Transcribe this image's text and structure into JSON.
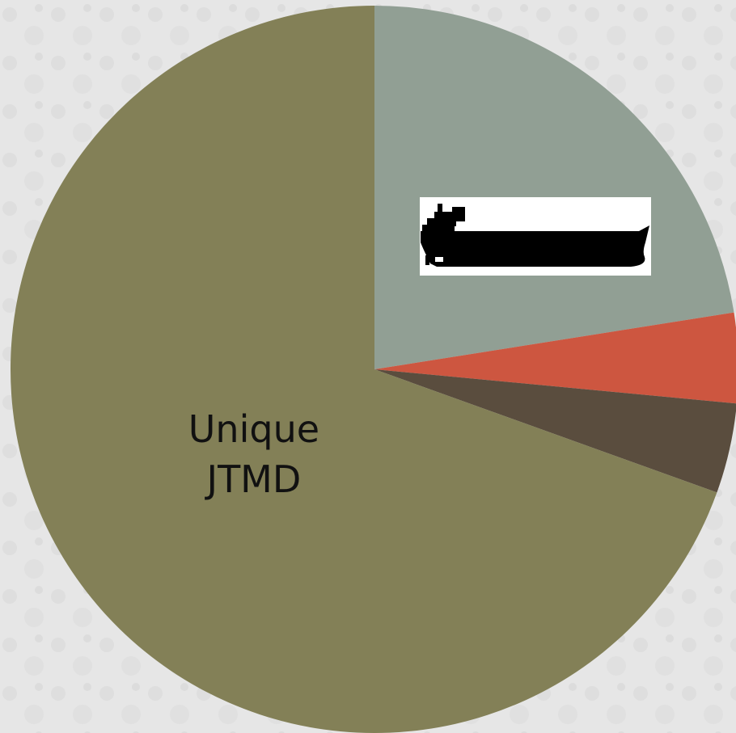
{
  "chart_data": {
    "type": "pie",
    "start_angle_deg": 0,
    "direction": "clockwise",
    "slices": [
      {
        "label": "",
        "value": 22.5,
        "color": "#919f94",
        "icon": "cargo-ship-icon"
      },
      {
        "label": "",
        "value": 4.0,
        "color": "#cd5640",
        "icon": ""
      },
      {
        "label": "",
        "value": 4.0,
        "color": "#5a4d3e",
        "icon": ""
      },
      {
        "label": "Unique JTMD",
        "value": 69.5,
        "color": "#838057",
        "icon": ""
      }
    ],
    "title": "",
    "legend": "none"
  },
  "background": "#e6e6e6"
}
